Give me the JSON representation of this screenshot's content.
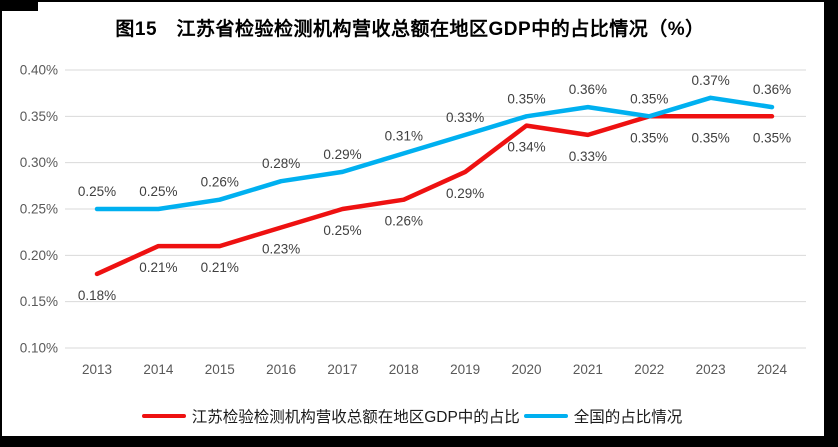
{
  "chart_data": {
    "type": "line",
    "title": "图15　江苏省检验检测机构营收总额在地区GDP中的占比情况（%）",
    "categories": [
      "2013",
      "2014",
      "2015",
      "2016",
      "2017",
      "2018",
      "2019",
      "2020",
      "2021",
      "2022",
      "2023",
      "2024"
    ],
    "series": [
      {
        "name": "江苏检验检测机构营收总额在地区GDP中的占比",
        "color": "#ee1111",
        "values": [
          0.18,
          0.21,
          0.21,
          0.23,
          0.25,
          0.26,
          0.29,
          0.34,
          0.33,
          0.35,
          0.35,
          0.35
        ],
        "data_labels": [
          "0.18%",
          "0.21%",
          "0.21%",
          "0.23%",
          "0.25%",
          "0.26%",
          "0.29%",
          "0.34%",
          "0.33%",
          "0.35%",
          "0.35%",
          "0.35%"
        ],
        "label_position": "below"
      },
      {
        "name": "全国的占比情况",
        "color": "#00b0f0",
        "values": [
          0.25,
          0.25,
          0.26,
          0.28,
          0.29,
          0.31,
          0.33,
          0.35,
          0.36,
          0.35,
          0.37,
          0.36
        ],
        "data_labels": [
          "0.25%",
          "0.25%",
          "0.26%",
          "0.28%",
          "0.29%",
          "0.31%",
          "0.33%",
          "0.35%",
          "0.36%",
          "0.35%",
          "0.37%",
          "0.36%"
        ],
        "label_position": "above"
      }
    ],
    "ylim": [
      0.1,
      0.4
    ],
    "ytick_step": 0.05,
    "ytick_labels": [
      "0.10%",
      "0.15%",
      "0.20%",
      "0.25%",
      "0.30%",
      "0.35%",
      "0.40%"
    ],
    "xlabel": "",
    "ylabel": "",
    "grid": true,
    "legend_position": "bottom",
    "colors": {
      "grid": "#d9d9d9",
      "axis_text": "#595959",
      "data_label_text": "#404040",
      "title_text": "#000000"
    }
  }
}
